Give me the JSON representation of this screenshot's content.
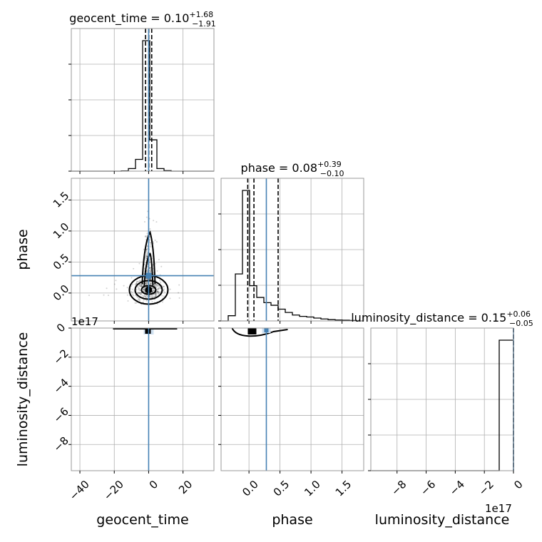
{
  "chart_data": {
    "type": "corner",
    "parameters": [
      "geocent_time",
      "phase",
      "luminosity_distance"
    ],
    "titles": [
      {
        "param": "geocent_time",
        "text": "geocent_time = 0.10",
        "plus": "+1.68",
        "minus": "−1.91"
      },
      {
        "param": "phase",
        "text": "phase = 0.08",
        "plus": "+0.39",
        "minus": "−0.10"
      },
      {
        "param": "luminosity_distance",
        "text": "luminosity_distance = 0.15",
        "plus": "+0.06",
        "minus": "−0.05"
      }
    ],
    "axis_labels": {
      "x": [
        "geocent_time",
        "phase",
        "luminosity_distance"
      ],
      "y": [
        "phase",
        "luminosity_distance"
      ]
    },
    "ranges": {
      "geocent_time": [
        -45,
        38
      ],
      "phase": [
        -0.45,
        1.85
      ],
      "luminosity_distance": [
        -9.8e+17,
        0
      ]
    },
    "ticks": {
      "geocent_time": {
        "values": [
          -40,
          -20,
          0,
          20
        ],
        "labels": [
          "−40",
          "−20",
          "0",
          "20"
        ]
      },
      "phase": {
        "values": [
          0.0,
          0.5,
          1.0,
          1.5
        ],
        "labels": [
          "0.0",
          "0.5",
          "1.0",
          "1.5"
        ]
      },
      "luminosity_distance": {
        "values": [
          -8e+17,
          -6e+17,
          -4e+17,
          -2e+17,
          0
        ],
        "labels": [
          "−8",
          "−6",
          "−4",
          "−2",
          "0"
        ]
      }
    },
    "offset_text": "1e17",
    "truths": {
      "geocent_time": 0.0,
      "phase": 0.28,
      "luminosity_distance": 0.15
    },
    "quantiles": {
      "geocent_time": [
        -1.81,
        0.1,
        1.78
      ],
      "phase": [
        -0.02,
        0.08,
        0.47
      ],
      "luminosity_distance": [
        0.1,
        0.15,
        0.21
      ]
    },
    "histograms": {
      "geocent_time": {
        "edges": [
          -45,
          -40.85,
          -36.7,
          -32.55,
          -28.4,
          -24.25,
          -20.1,
          -15.95,
          -11.8,
          -7.65,
          -3.5,
          0.65,
          4.8,
          8.95,
          13.1,
          17.25,
          21.4,
          25.55,
          29.7,
          33.85,
          38
        ],
        "counts": [
          0,
          0,
          0,
          0,
          0,
          0,
          0,
          0.002,
          0.02,
          0.09,
          1.0,
          0.24,
          0.02,
          0.004,
          0,
          0,
          0,
          0,
          0,
          0
        ]
      },
      "phase": {
        "edges": [
          -0.45,
          -0.335,
          -0.22,
          -0.105,
          0.01,
          0.125,
          0.24,
          0.355,
          0.47,
          0.585,
          0.7,
          0.815,
          0.93,
          1.045,
          1.16,
          1.275,
          1.39,
          1.505,
          1.62,
          1.735,
          1.85
        ],
        "counts": [
          0,
          0.04,
          0.36,
          1.0,
          0.27,
          0.18,
          0.14,
          0.12,
          0.09,
          0.065,
          0.045,
          0.035,
          0.03,
          0.022,
          0.015,
          0.01,
          0.007,
          0.005,
          0.003,
          0
        ]
      },
      "luminosity_distance": {
        "edges": [
          -9.8e+17,
          -8.82e+17,
          -7.84e+17,
          -6.86e+17,
          -5.88e+17,
          -4.9e+17,
          -3.92e+17,
          -2.94e+17,
          -1.96e+17,
          -9.8e+16,
          0
        ],
        "counts": [
          0,
          0,
          0,
          0,
          0,
          0,
          0,
          0,
          0,
          1.0
        ]
      }
    },
    "grid": true
  }
}
